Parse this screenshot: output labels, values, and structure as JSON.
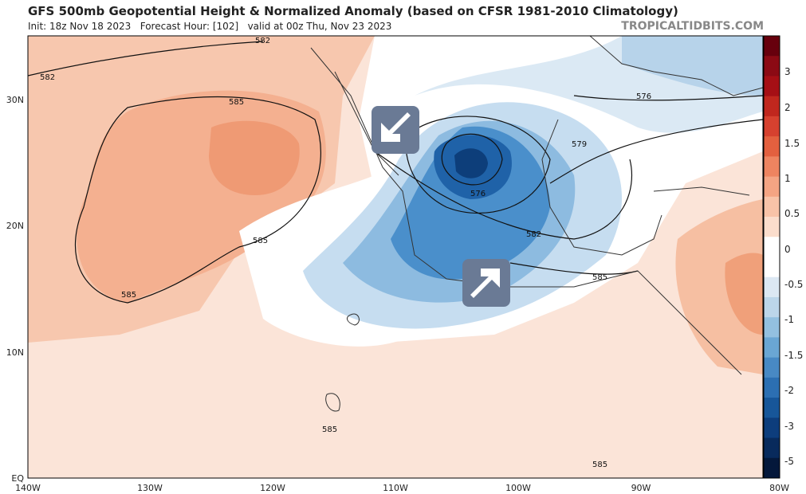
{
  "header": {
    "title": "GFS 500mb Geopotential Height & Normalized Anomaly (based on CFSR 1981-2010 Climatology)",
    "subtitle": "Init: 18z Nov 18 2023   Forecast Hour: [102]   valid at 00z Thu, Nov 23 2023",
    "watermark": "TROPICALTIDBITS.COM"
  },
  "map": {
    "lat_labels": [
      "30N",
      "20N",
      "10N",
      "EQ"
    ],
    "lon_labels": [
      "140W",
      "130W",
      "120W",
      "110W",
      "100W",
      "90W",
      "80W"
    ],
    "contour_labels": [
      "582",
      "582",
      "585",
      "585",
      "585",
      "576",
      "579",
      "576",
      "582",
      "585",
      "585",
      "585"
    ]
  },
  "colorbar": {
    "labels": [
      "3",
      "2",
      "1.5",
      "1",
      "0.5",
      "0",
      "-0.5",
      "-1",
      "-1.5",
      "-2",
      "-3",
      "-5"
    ]
  }
}
